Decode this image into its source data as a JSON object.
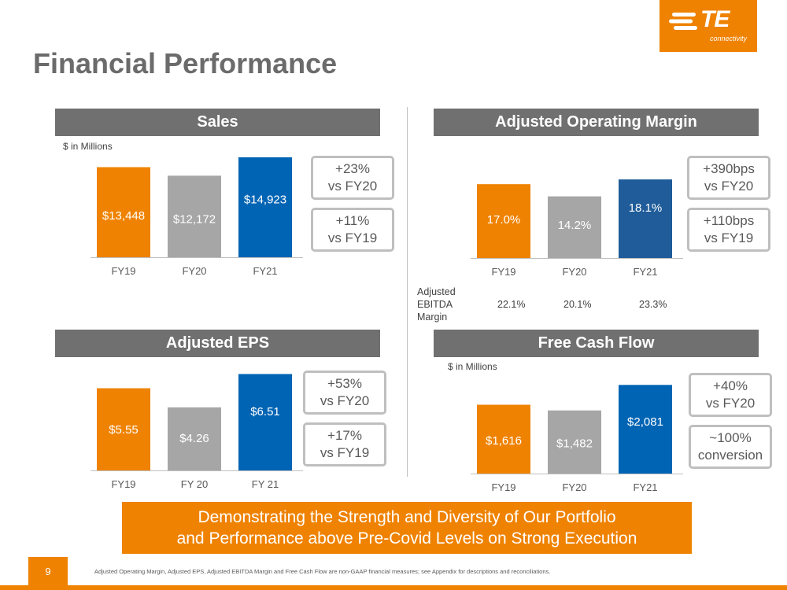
{
  "page": {
    "title": "Financial Performance",
    "page_number": "9",
    "footnote": "Adjusted Operating Margin, Adjusted EPS, Adjusted EBITDA Margin and Free Cash Flow are non-GAAP financial measures; see Appendix for descriptions and reconciliations."
  },
  "logo": {
    "text": "TE",
    "subtext": "connectivity"
  },
  "colors": {
    "orange": "#ef8200",
    "gray": "#a6a6a6",
    "blue": "#0064b4",
    "dark_blue": "#1f5c99",
    "header_gray": "#707070"
  },
  "panels": {
    "sales": {
      "header": "Sales",
      "note": "$ in Millions",
      "callouts": [
        {
          "line1": "+23%",
          "line2": "vs FY20"
        },
        {
          "line1": "+11%",
          "line2": "vs FY19"
        }
      ]
    },
    "margin": {
      "header": "Adjusted Operating Margin",
      "callouts": [
        {
          "line1": "+390bps",
          "line2": "vs FY20"
        },
        {
          "line1": "+110bps",
          "line2": "vs FY19"
        }
      ],
      "ebitda": {
        "label": "Adjusted EBITDA Margin",
        "values": [
          "22.1%",
          "20.1%",
          "23.3%"
        ]
      }
    },
    "eps": {
      "header": "Adjusted EPS",
      "callouts": [
        {
          "line1": "+53%",
          "line2": "vs FY20"
        },
        {
          "line1": "+17%",
          "line2": "vs FY19"
        }
      ]
    },
    "fcf": {
      "header": "Free Cash Flow",
      "note": "$ in Millions",
      "callouts": [
        {
          "line1": "+40%",
          "line2": "vs FY20"
        },
        {
          "line1": "~100%",
          "line2": "conversion"
        }
      ]
    }
  },
  "banner": {
    "line1": "Demonstrating the Strength and Diversity of Our Portfolio",
    "line2": "and Performance above Pre-Covid Levels on Strong Execution"
  },
  "chart_data": [
    {
      "type": "bar",
      "title": "Sales",
      "categories": [
        "FY19",
        "FY20",
        "FY21"
      ],
      "values": [
        13448,
        12172,
        14923
      ],
      "labels": [
        "$13,448",
        "$12,172",
        "$14,923"
      ],
      "ylim": [
        0,
        15500
      ]
    },
    {
      "type": "bar",
      "title": "Adjusted Operating Margin",
      "categories": [
        "FY19",
        "FY20",
        "FY21"
      ],
      "values": [
        17.0,
        14.2,
        18.1
      ],
      "labels": [
        "17.0%",
        "14.2%",
        "18.1%"
      ],
      "ylim": [
        0,
        19.2
      ]
    },
    {
      "type": "bar",
      "title": "Adjusted EPS",
      "categories": [
        "FY19",
        "FY 20",
        "FY 21"
      ],
      "values": [
        5.55,
        4.26,
        6.51
      ],
      "labels": [
        "$5.55",
        "$4.26",
        "$6.51"
      ],
      "ylim": [
        0,
        6.8
      ]
    },
    {
      "type": "bar",
      "title": "Free Cash Flow",
      "categories": [
        "FY19",
        "FY20",
        "FY21"
      ],
      "values": [
        1616,
        1482,
        2081
      ],
      "labels": [
        "$1,616",
        "$1,482",
        "$2,081"
      ],
      "ylim": [
        0,
        2290
      ]
    }
  ]
}
